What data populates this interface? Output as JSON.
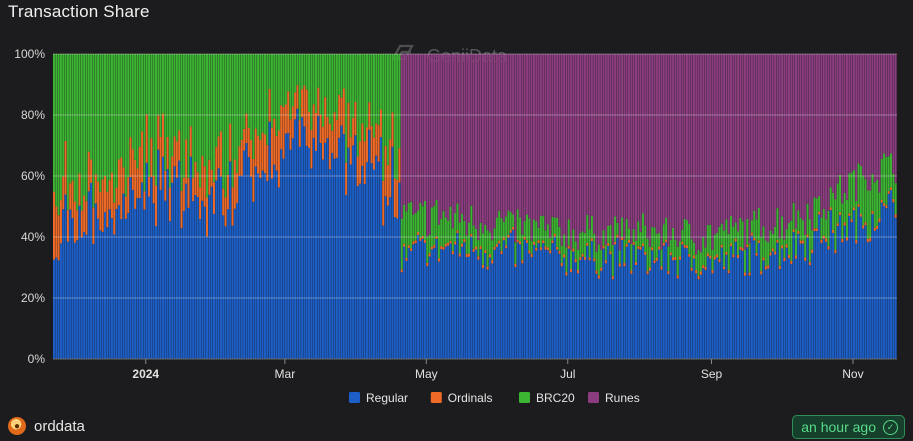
{
  "header": {
    "title": "Transaction Share",
    "watermark": "GeniiData"
  },
  "footer": {
    "brand": "orddata",
    "updated": "an hour ago",
    "avatar_icon": "orddata-avatar-icon",
    "check_icon": "check-circle-icon"
  },
  "chart_data": {
    "type": "bar",
    "stacked": true,
    "title": "Transaction Share",
    "xlabel": "",
    "ylabel": "",
    "ylim": [
      0,
      100
    ],
    "yticks": [
      "0%",
      "20%",
      "40%",
      "60%",
      "80%",
      "100%"
    ],
    "xticks": [
      {
        "label": "2024",
        "date": "2024-01-01",
        "bold": true
      },
      {
        "label": "Mar",
        "date": "2024-03-01"
      },
      {
        "label": "May",
        "date": "2024-05-01"
      },
      {
        "label": "Jul",
        "date": "2024-07-01"
      },
      {
        "label": "Sep",
        "date": "2024-09-01"
      },
      {
        "label": "Nov",
        "date": "2024-11-01"
      }
    ],
    "x_range": [
      "2023-11-22",
      "2024-11-19"
    ],
    "grid": true,
    "legend_position": "bottom-center",
    "series_colors": {
      "Regular": "#1c5fc9",
      "Ordinals": "#ef6a26",
      "BRC20": "#3cb532",
      "Runes": "#8c3d80"
    },
    "series": [
      {
        "name": "Regular",
        "keyframes": [
          [
            "2023-11-22",
            38
          ],
          [
            "2023-12-05",
            52
          ],
          [
            "2023-12-15",
            45
          ],
          [
            "2023-12-28",
            52
          ],
          [
            "2024-01-10",
            57
          ],
          [
            "2024-01-25",
            50
          ],
          [
            "2024-02-05",
            52
          ],
          [
            "2024-02-15",
            55
          ],
          [
            "2024-03-01",
            70
          ],
          [
            "2024-03-15",
            74
          ],
          [
            "2024-03-30",
            64
          ],
          [
            "2024-04-10",
            57
          ],
          [
            "2024-04-19",
            55
          ],
          [
            "2024-04-20",
            33
          ],
          [
            "2024-05-01",
            37
          ],
          [
            "2024-06-01",
            36
          ],
          [
            "2024-07-01",
            34
          ],
          [
            "2024-08-01",
            34
          ],
          [
            "2024-09-01",
            32
          ],
          [
            "2024-10-01",
            36
          ],
          [
            "2024-10-20",
            40
          ],
          [
            "2024-11-01",
            45
          ],
          [
            "2024-11-19",
            50
          ]
        ]
      },
      {
        "name": "Ordinals",
        "keyframes": [
          [
            "2023-11-22",
            14
          ],
          [
            "2023-12-05",
            13
          ],
          [
            "2023-12-28",
            11
          ],
          [
            "2024-01-10",
            10
          ],
          [
            "2024-02-05",
            10
          ],
          [
            "2024-02-20",
            12
          ],
          [
            "2024-03-05",
            14
          ],
          [
            "2024-03-20",
            13
          ],
          [
            "2024-04-10",
            11
          ],
          [
            "2024-04-19",
            10
          ],
          [
            "2024-04-20",
            1
          ],
          [
            "2024-11-19",
            1
          ]
        ]
      },
      {
        "name": "BRC20",
        "keyframes": [
          [
            "2023-11-22",
            48
          ],
          [
            "2024-01-01",
            34
          ],
          [
            "2024-02-01",
            34
          ],
          [
            "2024-03-01",
            16
          ],
          [
            "2024-04-10",
            27
          ],
          [
            "2024-04-19",
            33
          ],
          [
            "2024-04-20",
            12
          ],
          [
            "2024-05-15",
            9
          ],
          [
            "2024-07-01",
            7
          ],
          [
            "2024-09-01",
            8
          ],
          [
            "2024-10-15",
            9
          ],
          [
            "2024-11-01",
            13
          ],
          [
            "2024-11-19",
            14
          ]
        ]
      },
      {
        "name": "Runes",
        "keyframes": [
          [
            "2023-11-22",
            0
          ],
          [
            "2024-04-19",
            0
          ],
          [
            "2024-04-20",
            54
          ],
          [
            "2024-05-15",
            54
          ],
          [
            "2024-07-01",
            59
          ],
          [
            "2024-09-01",
            60
          ],
          [
            "2024-10-01",
            55
          ],
          [
            "2024-11-01",
            42
          ],
          [
            "2024-11-19",
            35
          ]
        ]
      }
    ]
  }
}
